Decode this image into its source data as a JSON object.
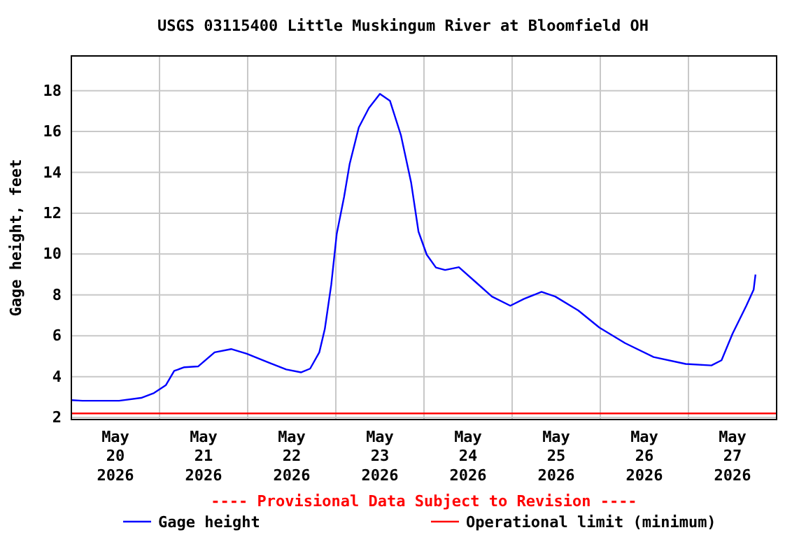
{
  "chart_data": {
    "type": "line",
    "title": "USGS 03115400 Little Muskingum River at Bloomfield OH",
    "ylabel": "Gage height, feet",
    "annotations": [
      "---- Provisional Data Subject to Revision ----"
    ],
    "xlim": [
      "2026-05-20",
      "2026-05-28"
    ],
    "xticks": [
      {
        "value": "2026-05-20T12:00",
        "label": "May\n20\n2026"
      },
      {
        "value": "2026-05-21T00:00",
        "label": null
      },
      {
        "value": "2026-05-21T12:00",
        "label": "May\n21\n2026"
      },
      {
        "value": "2026-05-22T00:00",
        "label": null
      },
      {
        "value": "2026-05-22T12:00",
        "label": "May\n22\n2026"
      },
      {
        "value": "2026-05-23T00:00",
        "label": null
      },
      {
        "value": "2026-05-23T12:00",
        "label": "May\n23\n2026"
      },
      {
        "value": "2026-05-24T00:00",
        "label": null
      },
      {
        "value": "2026-05-24T12:00",
        "label": "May\n24\n2026"
      },
      {
        "value": "2026-05-25T00:00",
        "label": null
      },
      {
        "value": "2026-05-25T12:00",
        "label": "May\n25\n2026"
      },
      {
        "value": "2026-05-26T00:00",
        "label": null
      },
      {
        "value": "2026-05-26T12:00",
        "label": "May\n26\n2026"
      },
      {
        "value": "2026-05-27T00:00",
        "label": null
      },
      {
        "value": "2026-05-27T12:00",
        "label": "May\n27\n2026"
      }
    ],
    "ylim": [
      1.9,
      19.7
    ],
    "yticks": [
      2,
      4,
      6,
      8,
      10,
      12,
      14,
      16,
      18
    ],
    "grid": true,
    "legend": "bottom",
    "marker": "none",
    "line_style": "solid",
    "series": [
      {
        "name": "Gage height",
        "color": "#0000ff",
        "x": [
          "2026-05-20T00:00",
          "2026-05-20T03:00",
          "2026-05-20T13:00",
          "2026-05-20T19:00",
          "2026-05-20T22:30",
          "2026-05-21T01:45",
          "2026-05-21T04:00",
          "2026-05-21T06:45",
          "2026-05-21T10:30",
          "2026-05-21T15:00",
          "2026-05-21T19:30",
          "2026-05-21T23:45",
          "2026-05-22T06:00",
          "2026-05-22T10:30",
          "2026-05-22T14:30",
          "2026-05-22T17:00",
          "2026-05-22T19:30",
          "2026-05-22T21:00",
          "2026-05-22T22:45",
          "2026-05-23T00:15",
          "2026-05-23T02:15",
          "2026-05-23T03:45",
          "2026-05-23T06:15",
          "2026-05-23T09:00",
          "2026-05-23T12:00",
          "2026-05-23T14:45",
          "2026-05-23T17:45",
          "2026-05-23T20:30",
          "2026-05-23T22:30",
          "2026-05-24T00:45",
          "2026-05-24T03:15",
          "2026-05-24T05:45",
          "2026-05-24T09:30",
          "2026-05-24T14:15",
          "2026-05-24T18:30",
          "2026-05-24T23:30",
          "2026-05-25T03:15",
          "2026-05-25T08:00",
          "2026-05-25T11:45",
          "2026-05-25T18:00",
          "2026-05-25T23:45",
          "2026-05-26T06:45",
          "2026-05-26T14:30",
          "2026-05-26T23:15",
          "2026-05-27T06:15",
          "2026-05-27T09:00",
          "2026-05-27T12:00",
          "2026-05-27T15:45",
          "2026-05-27T17:45",
          "2026-05-27T18:15"
        ],
        "values": [
          2.85,
          2.82,
          2.82,
          2.96,
          3.2,
          3.59,
          4.28,
          4.46,
          4.5,
          5.19,
          5.35,
          5.12,
          4.67,
          4.35,
          4.21,
          4.39,
          5.19,
          6.33,
          8.5,
          11.0,
          12.8,
          14.4,
          16.2,
          17.15,
          17.84,
          17.5,
          15.8,
          13.5,
          11.1,
          9.97,
          9.34,
          9.22,
          9.36,
          8.6,
          7.92,
          7.47,
          7.81,
          8.15,
          7.92,
          7.24,
          6.4,
          5.64,
          4.96,
          4.62,
          4.55,
          4.8,
          6.1,
          7.47,
          8.26,
          9.0
        ]
      },
      {
        "name": "Operational limit (minimum)",
        "color": "#ff0000",
        "x": [
          "2026-05-20",
          "2026-05-28"
        ],
        "values": [
          2.2,
          2.2
        ]
      }
    ]
  }
}
